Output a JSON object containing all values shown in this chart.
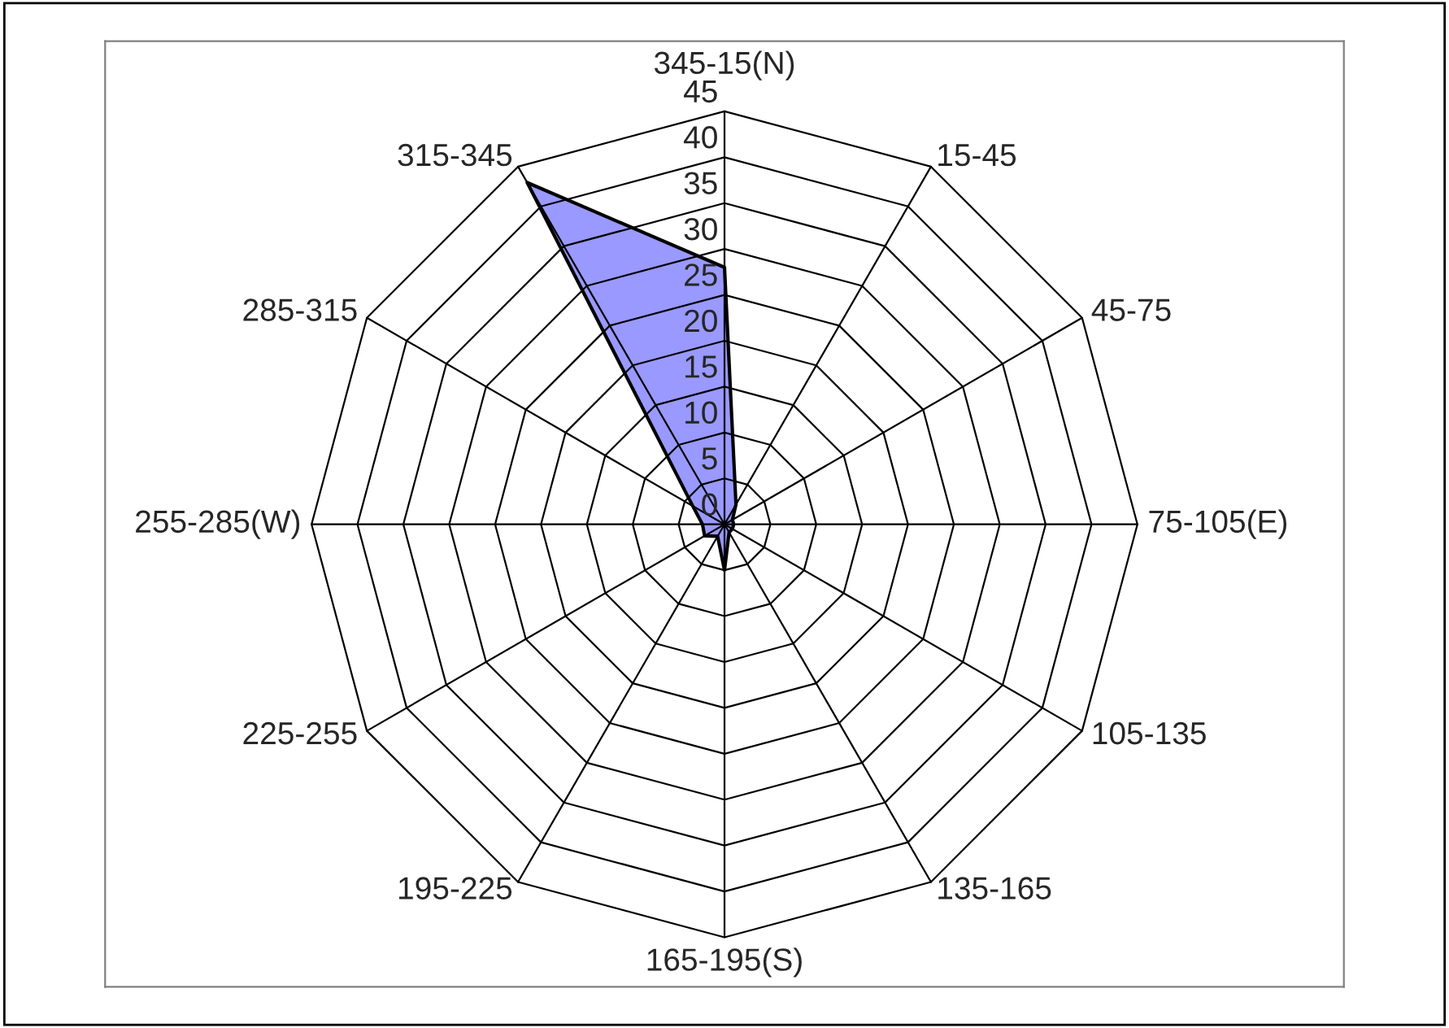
{
  "chart_data": {
    "type": "radar",
    "categories": [
      "345-15(N)",
      "15-45",
      "45-75",
      "75-105(E)",
      "105-135",
      "135-165",
      "165-195(S)",
      "195-225",
      "225-255",
      "255-285(W)",
      "285-315",
      "315-345"
    ],
    "series": [
      {
        "color": "#9999ff",
        "values": [
          28,
          2.5,
          1,
          1,
          1,
          1,
          5,
          1.5,
          2.5,
          2.4,
          4,
          43
        ]
      }
    ],
    "ylim": [
      0,
      45
    ],
    "yticks": [
      0,
      5,
      10,
      15,
      20,
      25,
      30,
      35,
      40,
      45
    ],
    "legend": false
  }
}
